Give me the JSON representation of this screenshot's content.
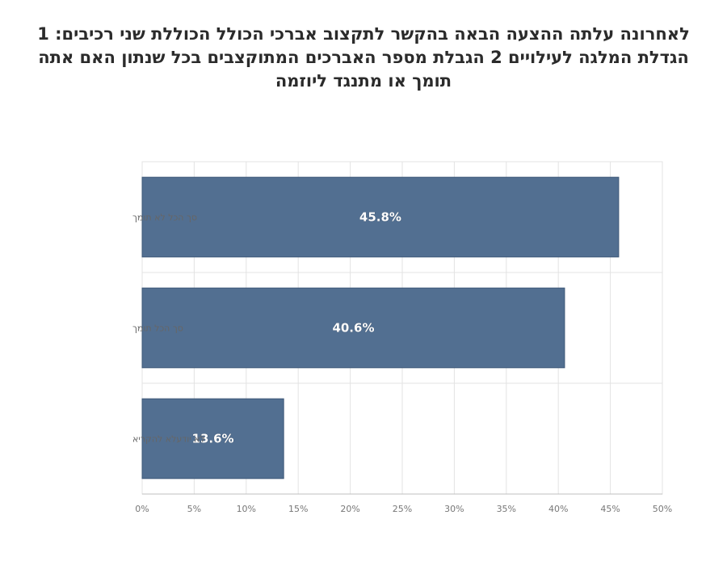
{
  "chart_data": {
    "type": "bar",
    "orientation": "horizontal",
    "title": "לאחרונה עלתה ההצעה הבאה בהקשר לתקצוב אברכי הכולל הכוללת שני רכיבים: 1 הגדלת המלגה לעילויים 2  הגבלת מספר האברכים המתוקצבים בכל שנתון האם אתה תומך או מתנגד ליוזמה",
    "categories": [
      "סך הכל לא תומך",
      "סך הכל תומך",
      "לא יודעלא להקריא"
    ],
    "values": [
      45.8,
      40.6,
      13.6
    ],
    "data_labels": [
      "45.8%",
      "40.6%",
      "13.6%"
    ],
    "xlim": [
      0,
      50
    ],
    "x_ticks": [
      0,
      5,
      10,
      15,
      20,
      25,
      30,
      35,
      40,
      45,
      50
    ],
    "x_tick_labels": [
      "0%",
      "5%",
      "10%",
      "15%",
      "20%",
      "25%",
      "30%",
      "35%",
      "40%",
      "45%",
      "50%"
    ],
    "grid": true,
    "legend": "none",
    "colors": {
      "bar": "#526f91",
      "bar_edge": "#3e5878",
      "grid": "#e3e3e3",
      "axis": "#bfbfbf"
    }
  }
}
